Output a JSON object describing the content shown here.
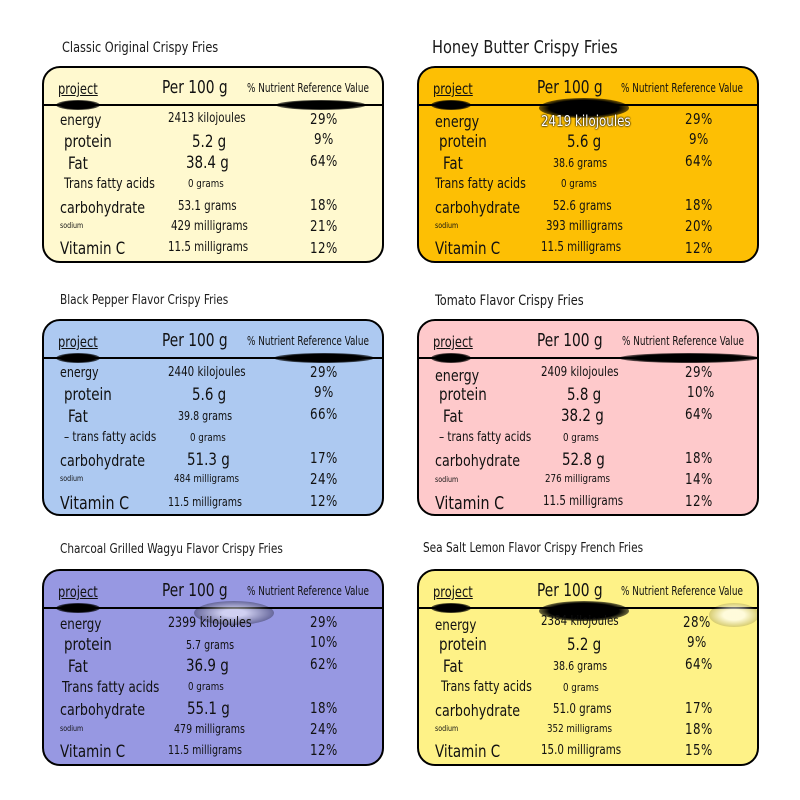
{
  "header": {
    "project": "project",
    "per": "Per 100 g",
    "nrv": "% Nutrient Reference Value"
  },
  "colors": {
    "cream": "#fff9cf",
    "gold": "#fdbf04",
    "blue": "#adc9f1",
    "pink": "#fec9cb",
    "violet": "#9798e2",
    "yellow": "#fef287"
  },
  "panels": [
    {
      "title": "Classic Original Crispy Fries",
      "energy": {
        "label": "energy",
        "value": "2413 kilojoules",
        "pct": "29%"
      },
      "protein": {
        "label": "protein",
        "value": "5.2 g",
        "pct": "9%"
      },
      "fat": {
        "label": "Fat",
        "value": "38.4 g",
        "pct": "64%"
      },
      "trans": {
        "label": "Trans fatty acids",
        "value": "0 grams"
      },
      "carb": {
        "label": "carbohydrate",
        "value": "53.1 grams",
        "pct": "18%"
      },
      "sodium": {
        "label": "sodium",
        "value": "429 milligrams",
        "pct": "21%"
      },
      "vitc": {
        "label": "Vitamin C",
        "value": "11.5 milligrams",
        "pct": "12%"
      }
    },
    {
      "title": "Honey Butter Crispy Fries",
      "energy": {
        "label": "energy",
        "value": "2419 kilojoules",
        "pct": "29%"
      },
      "protein": {
        "label": "protein",
        "value": "5.6 g",
        "pct": "9%"
      },
      "fat": {
        "label": "Fat",
        "value": "38.6 grams",
        "pct": "64%"
      },
      "trans": {
        "label": "Trans fatty acids",
        "value": "0 grams"
      },
      "carb": {
        "label": "carbohydrate",
        "value": "52.6 grams",
        "pct": "18%"
      },
      "sodium": {
        "label": "sodium",
        "value": "393 milligrams",
        "pct": "20%"
      },
      "vitc": {
        "label": "Vitamin C",
        "value": "11.5 milligrams",
        "pct": "12%"
      }
    },
    {
      "title": "Black Pepper Flavor Crispy Fries",
      "energy": {
        "label": "energy",
        "value": "2440 kilojoules",
        "pct": "29%"
      },
      "protein": {
        "label": "protein",
        "value": "5.6 g",
        "pct": "9%"
      },
      "fat": {
        "label": "Fat",
        "value": "39.8 grams",
        "pct": "66%"
      },
      "trans": {
        "label": "– trans fatty acids",
        "value": "0 grams"
      },
      "carb": {
        "label": "carbohydrate",
        "value": "51.3 g",
        "pct": "17%"
      },
      "sodium": {
        "label": "sodium",
        "value": "484 milligrams",
        "pct": "24%"
      },
      "vitc": {
        "label": "Vitamin C",
        "value": "11.5 milligrams",
        "pct": "12%"
      }
    },
    {
      "title": "Tomato Flavor Crispy Fries",
      "energy": {
        "label": "energy",
        "value": "2409 kilojoules",
        "pct": "29%"
      },
      "protein": {
        "label": "protein",
        "value": "5.8 g",
        "pct": "10%"
      },
      "fat": {
        "label": "Fat",
        "value": "38.2 g",
        "pct": "64%"
      },
      "trans": {
        "label": "– trans fatty acids",
        "value": "0 grams"
      },
      "carb": {
        "label": "carbohydrate",
        "value": "52.8 g",
        "pct": "18%"
      },
      "sodium": {
        "label": "sodium",
        "value": "276 milligrams",
        "pct": "14%"
      },
      "vitc": {
        "label": "Vitamin C",
        "value": "11.5 milligrams",
        "pct": "12%"
      }
    },
    {
      "title": "Charcoal Grilled Wagyu Flavor Crispy Fries",
      "energy": {
        "label": "energy",
        "value": "2399 kilojoules",
        "pct": "29%"
      },
      "protein": {
        "label": "protein",
        "value": "5.7 grams",
        "pct": "10%"
      },
      "fat": {
        "label": "Fat",
        "value": "36.9 g",
        "pct": "62%"
      },
      "trans": {
        "label": "Trans fatty acids",
        "value": "0 grams"
      },
      "carb": {
        "label": "carbohydrate",
        "value": "55.1 g",
        "pct": "18%"
      },
      "sodium": {
        "label": "sodium",
        "value": "479 milligrams",
        "pct": "24%"
      },
      "vitc": {
        "label": "Vitamin C",
        "value": "11.5 milligrams",
        "pct": "12%"
      }
    },
    {
      "title": "Sea Salt Lemon Flavor Crispy French Fries",
      "energy": {
        "label": "energy",
        "value": "2384 kilojoules",
        "pct": "28%"
      },
      "protein": {
        "label": "protein",
        "value": "5.2 g",
        "pct": "9%"
      },
      "fat": {
        "label": "Fat",
        "value": "38.6 grams",
        "pct": "64%"
      },
      "trans": {
        "label": "Trans fatty acids",
        "value": "0 grams"
      },
      "carb": {
        "label": "carbohydrate",
        "value": "51.0 grams",
        "pct": "17%"
      },
      "sodium": {
        "label": "sodium",
        "value": "352 milligrams",
        "pct": "18%"
      },
      "vitc": {
        "label": "Vitamin C",
        "value": "15.0 milligrams",
        "pct": "15%"
      }
    }
  ]
}
